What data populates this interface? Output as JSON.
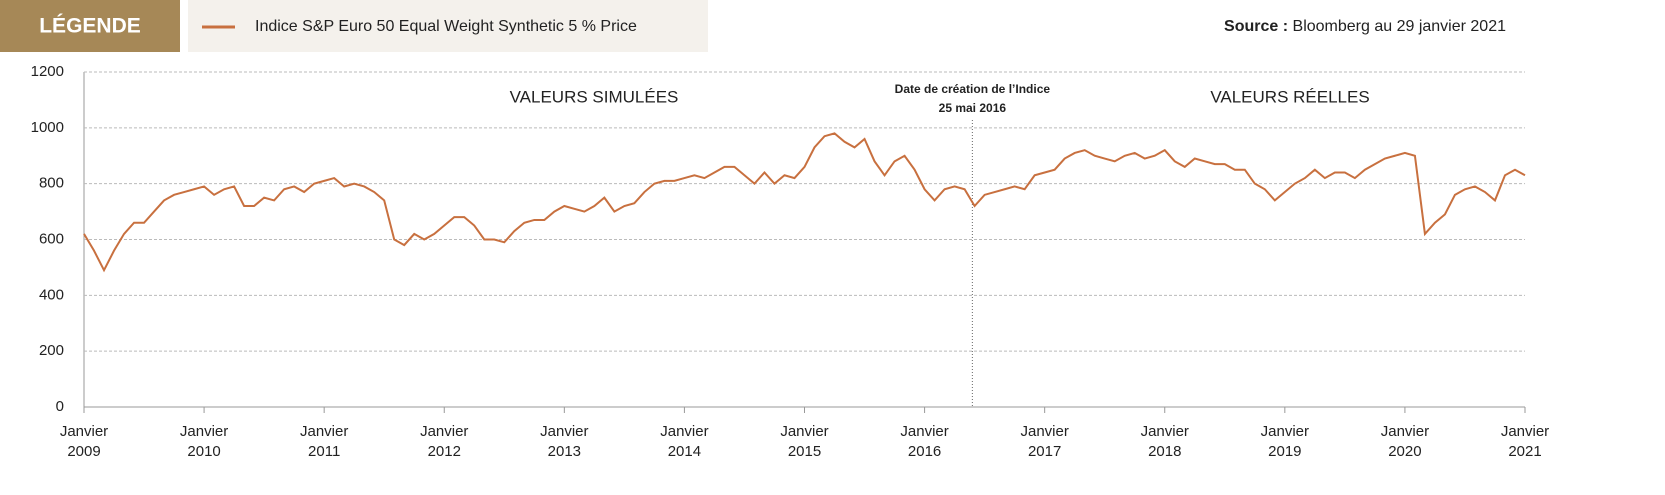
{
  "legend_title": "LÉGENDE",
  "source_label": "Source :",
  "source": "Bloomberg au 29 janvier 2021",
  "chart_data": {
    "type": "line",
    "annotations": {
      "simulated": "VALEURS SIMULÉES",
      "real": "VALEURS RÉELLES",
      "creation_title": "Date de création de l’Indice",
      "creation_date": "25 mai 2016",
      "creation_x": "2016-05-25"
    },
    "x": [
      "2009-01",
      "2009-02",
      "2009-03",
      "2009-04",
      "2009-05",
      "2009-06",
      "2009-07",
      "2009-08",
      "2009-09",
      "2009-10",
      "2009-11",
      "2009-12",
      "2010-01",
      "2010-02",
      "2010-03",
      "2010-04",
      "2010-05",
      "2010-06",
      "2010-07",
      "2010-08",
      "2010-09",
      "2010-10",
      "2010-11",
      "2010-12",
      "2011-01",
      "2011-02",
      "2011-03",
      "2011-04",
      "2011-05",
      "2011-06",
      "2011-07",
      "2011-08",
      "2011-09",
      "2011-10",
      "2011-11",
      "2011-12",
      "2012-01",
      "2012-02",
      "2012-03",
      "2012-04",
      "2012-05",
      "2012-06",
      "2012-07",
      "2012-08",
      "2012-09",
      "2012-10",
      "2012-11",
      "2012-12",
      "2013-01",
      "2013-02",
      "2013-03",
      "2013-04",
      "2013-05",
      "2013-06",
      "2013-07",
      "2013-08",
      "2013-09",
      "2013-10",
      "2013-11",
      "2013-12",
      "2014-01",
      "2014-02",
      "2014-03",
      "2014-04",
      "2014-05",
      "2014-06",
      "2014-07",
      "2014-08",
      "2014-09",
      "2014-10",
      "2014-11",
      "2014-12",
      "2015-01",
      "2015-02",
      "2015-03",
      "2015-04",
      "2015-05",
      "2015-06",
      "2015-07",
      "2015-08",
      "2015-09",
      "2015-10",
      "2015-11",
      "2015-12",
      "2016-01",
      "2016-02",
      "2016-03",
      "2016-04",
      "2016-05",
      "2016-06",
      "2016-07",
      "2016-08",
      "2016-09",
      "2016-10",
      "2016-11",
      "2016-12",
      "2017-01",
      "2017-02",
      "2017-03",
      "2017-04",
      "2017-05",
      "2017-06",
      "2017-07",
      "2017-08",
      "2017-09",
      "2017-10",
      "2017-11",
      "2017-12",
      "2018-01",
      "2018-02",
      "2018-03",
      "2018-04",
      "2018-05",
      "2018-06",
      "2018-07",
      "2018-08",
      "2018-09",
      "2018-10",
      "2018-11",
      "2018-12",
      "2019-01",
      "2019-02",
      "2019-03",
      "2019-04",
      "2019-05",
      "2019-06",
      "2019-07",
      "2019-08",
      "2019-09",
      "2019-10",
      "2019-11",
      "2019-12",
      "2020-01",
      "2020-02",
      "2020-03",
      "2020-04",
      "2020-05",
      "2020-06",
      "2020-07",
      "2020-08",
      "2020-09",
      "2020-10",
      "2020-11",
      "2020-12",
      "2021-01"
    ],
    "series": [
      {
        "name": "Indice S&P Euro 50 Equal Weight Synthetic 5 % Price",
        "color": "#c8703f",
        "values": [
          620,
          560,
          490,
          560,
          620,
          660,
          660,
          700,
          740,
          760,
          770,
          780,
          790,
          760,
          780,
          790,
          720,
          720,
          750,
          740,
          780,
          790,
          770,
          800,
          810,
          820,
          790,
          800,
          790,
          770,
          740,
          600,
          580,
          620,
          600,
          620,
          650,
          680,
          680,
          650,
          600,
          600,
          590,
          630,
          660,
          670,
          670,
          700,
          720,
          710,
          700,
          720,
          750,
          700,
          720,
          730,
          770,
          800,
          810,
          810,
          820,
          830,
          820,
          840,
          860,
          860,
          830,
          800,
          840,
          800,
          830,
          820,
          860,
          930,
          970,
          980,
          950,
          930,
          960,
          880,
          830,
          880,
          900,
          850,
          780,
          740,
          780,
          790,
          780,
          720,
          760,
          770,
          780,
          790,
          780,
          830,
          840,
          850,
          890,
          910,
          920,
          900,
          890,
          880,
          900,
          910,
          890,
          900,
          920,
          880,
          860,
          890,
          880,
          870,
          870,
          850,
          850,
          800,
          780,
          740,
          770,
          800,
          820,
          850,
          820,
          840,
          840,
          820,
          850,
          870,
          890,
          900,
          910,
          900,
          620,
          660,
          690,
          760,
          780,
          790,
          770,
          740,
          830,
          850,
          830
        ]
      }
    ],
    "xlim": [
      "2009-01",
      "2021-01"
    ],
    "xticks": [
      {
        "value": "2009-01",
        "label": "Janvier 2009"
      },
      {
        "value": "2010-01",
        "label": "Janvier 2010"
      },
      {
        "value": "2011-01",
        "label": "Janvier 2011"
      },
      {
        "value": "2012-01",
        "label": "Janvier 2012"
      },
      {
        "value": "2013-01",
        "label": "Janvier 2013"
      },
      {
        "value": "2014-01",
        "label": "Janvier 2014"
      },
      {
        "value": "2015-01",
        "label": "Janvier 2015"
      },
      {
        "value": "2016-01",
        "label": "Janvier 2016"
      },
      {
        "value": "2017-01",
        "label": "Janvier 2017"
      },
      {
        "value": "2018-01",
        "label": "Janvier 2018"
      },
      {
        "value": "2019-01",
        "label": "Janvier 2019"
      },
      {
        "value": "2020-01",
        "label": "Janvier 2020"
      },
      {
        "value": "2021-01",
        "label": "Janvier 2021"
      }
    ],
    "ylim": [
      0,
      1200
    ],
    "yticks": [
      0,
      200,
      400,
      600,
      800,
      1000,
      1200
    ],
    "grid": true
  }
}
